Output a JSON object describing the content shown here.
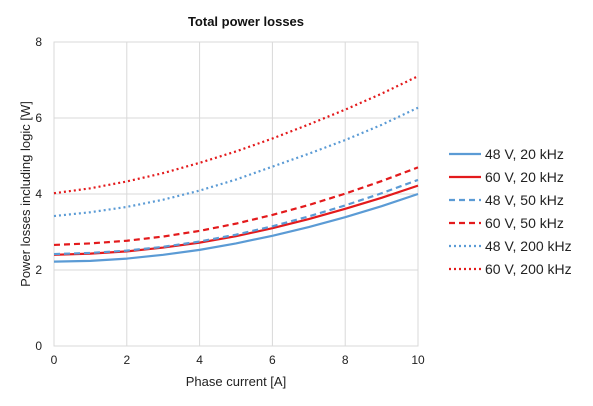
{
  "chart_data": {
    "type": "line",
    "title": "Total power losses",
    "xlabel": "Phase current [A]",
    "ylabel": "Power losses including logic [W]",
    "xlim": [
      0,
      10
    ],
    "ylim": [
      0,
      8
    ],
    "xticks": [
      0,
      2,
      4,
      6,
      8,
      10
    ],
    "yticks": [
      0,
      2,
      4,
      6,
      8
    ],
    "grid": true,
    "legend_position": "right",
    "x": [
      0,
      1,
      2,
      3,
      4,
      5,
      6,
      7,
      8,
      9,
      10
    ],
    "series": [
      {
        "name": "48 V, 20 kHz",
        "color": "#5b9bd5",
        "dash": "solid",
        "values": [
          2.22,
          2.24,
          2.3,
          2.4,
          2.53,
          2.7,
          2.9,
          3.13,
          3.39,
          3.68,
          4.0
        ]
      },
      {
        "name": "60 V, 20 kHz",
        "color": "#e31a1c",
        "dash": "solid",
        "values": [
          2.4,
          2.43,
          2.49,
          2.59,
          2.72,
          2.89,
          3.1,
          3.34,
          3.61,
          3.9,
          4.22
        ]
      },
      {
        "name": "48 V, 50 kHz",
        "color": "#5b9bd5",
        "dash": "dashed",
        "values": [
          2.42,
          2.45,
          2.51,
          2.61,
          2.75,
          2.93,
          3.15,
          3.41,
          3.7,
          4.02,
          4.37
        ]
      },
      {
        "name": "60 V, 50 kHz",
        "color": "#e31a1c",
        "dash": "dashed",
        "values": [
          2.66,
          2.7,
          2.77,
          2.88,
          3.03,
          3.22,
          3.45,
          3.71,
          4.01,
          4.34,
          4.7
        ]
      },
      {
        "name": "48 V, 200 kHz",
        "color": "#5b9bd5",
        "dash": "dotted",
        "values": [
          3.42,
          3.52,
          3.66,
          3.85,
          4.09,
          4.38,
          4.72,
          5.06,
          5.42,
          5.82,
          6.27
        ]
      },
      {
        "name": "60 V, 200 kHz",
        "color": "#e31a1c",
        "dash": "dotted",
        "values": [
          4.02,
          4.15,
          4.33,
          4.55,
          4.82,
          5.12,
          5.46,
          5.83,
          6.22,
          6.64,
          7.1
        ]
      }
    ]
  }
}
